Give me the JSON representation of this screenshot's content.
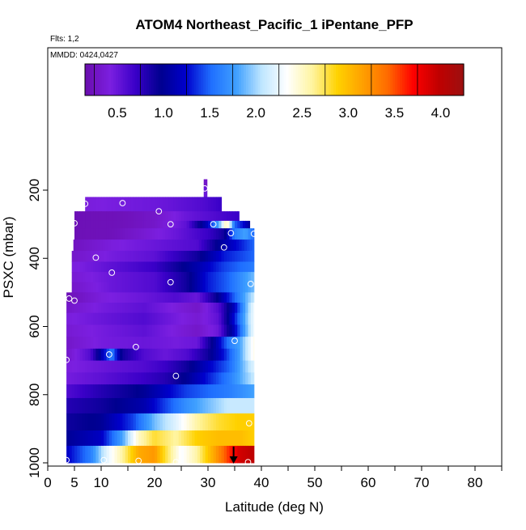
{
  "chart_data": {
    "type": "heatmap",
    "title": "ATOM4 Northeast_Pacific_1 iPentane_PFP",
    "flights_label": "Flts: 1,2",
    "dates_label": "MMDD: 0424,0427",
    "xlabel": "Latitude (deg N)",
    "ylabel": "PSXC (mbar)",
    "xlim": [
      0,
      85
    ],
    "ylim": [
      1000,
      0
    ],
    "x_ticks": [
      0,
      5,
      10,
      20,
      30,
      40,
      50,
      60,
      70,
      80
    ],
    "y_ticks": [
      200,
      400,
      600,
      800,
      1000
    ],
    "colorbar": {
      "range": [
        0.15,
        4.25
      ],
      "ticks": [
        0.5,
        1.0,
        1.5,
        2.0,
        2.5,
        3.0,
        3.5,
        4.0
      ],
      "tick_labels": [
        "0.5",
        "1.0",
        "1.5",
        "2.0",
        "2.5",
        "3.0",
        "3.5",
        "4.0"
      ],
      "colors": [
        "#6a0dad",
        "#7b1fe0",
        "#3a00c8",
        "#00008f",
        "#0000cc",
        "#1f6fff",
        "#3fa0ff",
        "#bfe6ff",
        "#ffffff",
        "#fff4a0",
        "#ffd200",
        "#ffa000",
        "#ff6a00",
        "#ff0000",
        "#c00000",
        "#9c1010"
      ]
    },
    "grid_rows": [
      {
        "pmin": 168,
        "pmax": 190,
        "lat_min": 29.2,
        "lat_max": 29.8,
        "values": [
          [
            29.2,
            0.3
          ],
          [
            29.8,
            0.3
          ]
        ]
      },
      {
        "pmin": 190,
        "pmax": 220,
        "lat_min": 29.2,
        "lat_max": 29.8,
        "values": [
          [
            29.2,
            0.5
          ],
          [
            29.8,
            0.5
          ]
        ]
      },
      {
        "pmin": 220,
        "pmax": 262,
        "lat_min": 7.0,
        "lat_max": 32.5,
        "values": [
          [
            7,
            0.4
          ],
          [
            14,
            0.45
          ],
          [
            22,
            0.5
          ],
          [
            29,
            0.6
          ],
          [
            32.5,
            0.7
          ]
        ]
      },
      {
        "pmin": 262,
        "pmax": 290,
        "lat_min": 5.0,
        "lat_max": 35.8,
        "values": [
          [
            5,
            0.2
          ],
          [
            14,
            0.22
          ],
          [
            20,
            0.3
          ],
          [
            26,
            0.5
          ],
          [
            31,
            0.6
          ],
          [
            35.8,
            0.7
          ]
        ]
      },
      {
        "pmin": 290,
        "pmax": 312,
        "lat_min": 5.0,
        "lat_max": 37.8,
        "values": [
          [
            5,
            0.2
          ],
          [
            14,
            0.22
          ],
          [
            20,
            0.3
          ],
          [
            26,
            0.55
          ],
          [
            30,
            1.2
          ],
          [
            32,
            1.8
          ],
          [
            33.5,
            2.6
          ],
          [
            35,
            1.5
          ],
          [
            37,
            1.2
          ],
          [
            37.8,
            1.0
          ]
        ]
      },
      {
        "pmin": 312,
        "pmax": 345,
        "lat_min": 5.0,
        "lat_max": 38.6,
        "values": [
          [
            5,
            0.2
          ],
          [
            12,
            0.22
          ],
          [
            18,
            0.35
          ],
          [
            24,
            0.5
          ],
          [
            30,
            0.7
          ],
          [
            33,
            0.9
          ],
          [
            35,
            1.6
          ],
          [
            37,
            1.8
          ],
          [
            38.6,
            1.5
          ]
        ]
      },
      {
        "pmin": 345,
        "pmax": 378,
        "lat_min": 4.8,
        "lat_max": 38.6,
        "values": [
          [
            4.8,
            0.25
          ],
          [
            12,
            0.4
          ],
          [
            20,
            0.5
          ],
          [
            28,
            0.6
          ],
          [
            33,
            1.1
          ],
          [
            36,
            1.3
          ],
          [
            38.6,
            1.5
          ]
        ]
      },
      {
        "pmin": 378,
        "pmax": 410,
        "lat_min": 4.5,
        "lat_max": 38.6,
        "values": [
          [
            4.5,
            0.3
          ],
          [
            12,
            0.45
          ],
          [
            20,
            0.55
          ],
          [
            28,
            0.9
          ],
          [
            33,
            1.3
          ],
          [
            38.6,
            1.5
          ]
        ]
      },
      {
        "pmin": 410,
        "pmax": 440,
        "lat_min": 4.5,
        "lat_max": 38.6,
        "values": [
          [
            4.5,
            0.4
          ],
          [
            12,
            0.55
          ],
          [
            20,
            0.7
          ],
          [
            28,
            1.1
          ],
          [
            33,
            1.4
          ],
          [
            38.6,
            1.6
          ]
        ]
      },
      {
        "pmin": 440,
        "pmax": 470,
        "lat_min": 4.5,
        "lat_max": 38.6,
        "values": [
          [
            4.5,
            0.35
          ],
          [
            12,
            0.5
          ],
          [
            20,
            0.6
          ],
          [
            26,
            0.9
          ],
          [
            30,
            1.3
          ],
          [
            34,
            1.5
          ],
          [
            38.6,
            1.9
          ]
        ]
      },
      {
        "pmin": 470,
        "pmax": 500,
        "lat_min": 4.5,
        "lat_max": 38.6,
        "values": [
          [
            4.5,
            0.3
          ],
          [
            12,
            0.5
          ],
          [
            20,
            0.6
          ],
          [
            26,
            0.9
          ],
          [
            30,
            1.3
          ],
          [
            34,
            1.5
          ],
          [
            38.6,
            1.9
          ]
        ]
      },
      {
        "pmin": 500,
        "pmax": 530,
        "lat_min": 3.5,
        "lat_max": 38.6,
        "values": [
          [
            3.5,
            0.2
          ],
          [
            10,
            0.4
          ],
          [
            18,
            0.5
          ],
          [
            24,
            0.6
          ],
          [
            28,
            0.5
          ],
          [
            32,
            1.0
          ],
          [
            38.6,
            2.1
          ]
        ]
      },
      {
        "pmin": 530,
        "pmax": 560,
        "lat_min": 3.5,
        "lat_max": 38.6,
        "values": [
          [
            3.5,
            0.3
          ],
          [
            10,
            0.45
          ],
          [
            18,
            0.55
          ],
          [
            24,
            0.4
          ],
          [
            28,
            0.3
          ],
          [
            32,
            0.6
          ],
          [
            35,
            1.2
          ],
          [
            38.6,
            2.3
          ]
        ]
      },
      {
        "pmin": 560,
        "pmax": 595,
        "lat_min": 3.5,
        "lat_max": 38.6,
        "values": [
          [
            3.5,
            0.4
          ],
          [
            10,
            0.5
          ],
          [
            18,
            0.6
          ],
          [
            24,
            0.45
          ],
          [
            28,
            0.35
          ],
          [
            32,
            0.55
          ],
          [
            35,
            1.3
          ],
          [
            38.6,
            2.3
          ]
        ]
      },
      {
        "pmin": 595,
        "pmax": 630,
        "lat_min": 3.5,
        "lat_max": 38.6,
        "values": [
          [
            3.5,
            0.35
          ],
          [
            10,
            0.45
          ],
          [
            18,
            0.55
          ],
          [
            24,
            0.4
          ],
          [
            28,
            0.3
          ],
          [
            32,
            0.5
          ],
          [
            35,
            1.2
          ],
          [
            38.6,
            2.3
          ]
        ]
      },
      {
        "pmin": 630,
        "pmax": 665,
        "lat_min": 3.5,
        "lat_max": 38.6,
        "values": [
          [
            3.5,
            0.3
          ],
          [
            10,
            0.45
          ],
          [
            18,
            0.5
          ],
          [
            24,
            0.45
          ],
          [
            28,
            0.5
          ],
          [
            31,
            1.0
          ],
          [
            34,
            1.6
          ],
          [
            36,
            1.8
          ],
          [
            38.6,
            2.4
          ]
        ]
      },
      {
        "pmin": 665,
        "pmax": 700,
        "lat_min": 3.5,
        "lat_max": 38.6,
        "values": [
          [
            3.5,
            0.3
          ],
          [
            8,
            0.6
          ],
          [
            10,
            1.1
          ],
          [
            12,
            1.6
          ],
          [
            14,
            0.9
          ],
          [
            18,
            0.6
          ],
          [
            22,
            0.5
          ],
          [
            26,
            0.6
          ],
          [
            30,
            0.9
          ],
          [
            33,
            1.3
          ],
          [
            36,
            1.8
          ],
          [
            38.6,
            2.4
          ]
        ]
      },
      {
        "pmin": 700,
        "pmax": 735,
        "lat_min": 3.5,
        "lat_max": 38.6,
        "values": [
          [
            3.5,
            0.4
          ],
          [
            10,
            0.5
          ],
          [
            18,
            0.6
          ],
          [
            22,
            0.7
          ],
          [
            26,
            0.9
          ],
          [
            30,
            1.2
          ],
          [
            34,
            1.5
          ],
          [
            38.6,
            2.2
          ]
        ]
      },
      {
        "pmin": 735,
        "pmax": 770,
        "lat_min": 3.5,
        "lat_max": 38.6,
        "values": [
          [
            3.5,
            0.45
          ],
          [
            10,
            0.55
          ],
          [
            18,
            0.7
          ],
          [
            22,
            0.8
          ],
          [
            26,
            1.0
          ],
          [
            30,
            1.3
          ],
          [
            34,
            1.6
          ],
          [
            38.6,
            2.1
          ]
        ]
      },
      {
        "pmin": 770,
        "pmax": 810,
        "lat_min": 3.5,
        "lat_max": 38.6,
        "values": [
          [
            3.5,
            0.6
          ],
          [
            10,
            0.8
          ],
          [
            18,
            1.0
          ],
          [
            22,
            1.2
          ],
          [
            26,
            1.4
          ],
          [
            30,
            1.5
          ],
          [
            34,
            1.6
          ],
          [
            38.6,
            1.8
          ]
        ]
      },
      {
        "pmin": 810,
        "pmax": 855,
        "lat_min": 3.5,
        "lat_max": 38.6,
        "values": [
          [
            3.5,
            0.8
          ],
          [
            10,
            0.9
          ],
          [
            18,
            1.1
          ],
          [
            22,
            1.4
          ],
          [
            26,
            1.7
          ],
          [
            30,
            1.9
          ],
          [
            34,
            2.1
          ],
          [
            38.6,
            2.1
          ]
        ]
      },
      {
        "pmin": 855,
        "pmax": 905,
        "lat_min": 3.5,
        "lat_max": 38.6,
        "values": [
          [
            3.5,
            0.9
          ],
          [
            10,
            1.0
          ],
          [
            16,
            1.4
          ],
          [
            20,
            1.9
          ],
          [
            24,
            2.2
          ],
          [
            28,
            2.6
          ],
          [
            32,
            2.8
          ],
          [
            36,
            2.9
          ],
          [
            38.6,
            2.9
          ]
        ]
      },
      {
        "pmin": 905,
        "pmax": 950,
        "lat_min": 3.5,
        "lat_max": 38.6,
        "values": [
          [
            3.5,
            1.0
          ],
          [
            10,
            1.2
          ],
          [
            14,
            1.8
          ],
          [
            17,
            2.5
          ],
          [
            20,
            2.8
          ],
          [
            24,
            2.6
          ],
          [
            28,
            2.9
          ],
          [
            32,
            3.0
          ],
          [
            36,
            3.0
          ],
          [
            38.6,
            2.9
          ]
        ]
      },
      {
        "pmin": 950,
        "pmax": 1000,
        "lat_min": 3.5,
        "lat_max": 38.6,
        "values": [
          [
            3.5,
            1.2
          ],
          [
            8,
            1.6
          ],
          [
            11,
            2.2
          ],
          [
            14,
            2.6
          ],
          [
            17,
            3.1
          ],
          [
            20,
            3.2
          ],
          [
            22,
            2.8
          ],
          [
            25,
            2.3
          ],
          [
            28,
            2.6
          ],
          [
            31,
            3.1
          ],
          [
            34,
            3.6
          ],
          [
            36,
            3.9
          ],
          [
            38.6,
            4.0
          ]
        ]
      }
    ],
    "samples": [
      {
        "lat": 29.4,
        "p": 195
      },
      {
        "lat": 7.0,
        "p": 240
      },
      {
        "lat": 14.0,
        "p": 238
      },
      {
        "lat": 20.8,
        "p": 262
      },
      {
        "lat": 5.0,
        "p": 297
      },
      {
        "lat": 23.0,
        "p": 300
      },
      {
        "lat": 31.0,
        "p": 300
      },
      {
        "lat": 34.3,
        "p": 326
      },
      {
        "lat": 38.6,
        "p": 328
      },
      {
        "lat": 33.0,
        "p": 368
      },
      {
        "lat": 9.0,
        "p": 398
      },
      {
        "lat": 12.0,
        "p": 442
      },
      {
        "lat": 23.0,
        "p": 470
      },
      {
        "lat": 38.0,
        "p": 475
      },
      {
        "lat": 4.0,
        "p": 518
      },
      {
        "lat": 5.0,
        "p": 524
      },
      {
        "lat": 35.0,
        "p": 642
      },
      {
        "lat": 16.5,
        "p": 660
      },
      {
        "lat": 11.5,
        "p": 682
      },
      {
        "lat": 3.5,
        "p": 698
      },
      {
        "lat": 24.0,
        "p": 745
      },
      {
        "lat": 37.7,
        "p": 884
      },
      {
        "lat": 3.5,
        "p": 992
      },
      {
        "lat": 10.5,
        "p": 992
      },
      {
        "lat": 17.0,
        "p": 994
      },
      {
        "lat": 24.0,
        "p": 998
      },
      {
        "lat": 37.5,
        "p": 998
      }
    ],
    "marker": {
      "lat": 34.8,
      "p_from": 952,
      "p_to": 1000
    }
  }
}
